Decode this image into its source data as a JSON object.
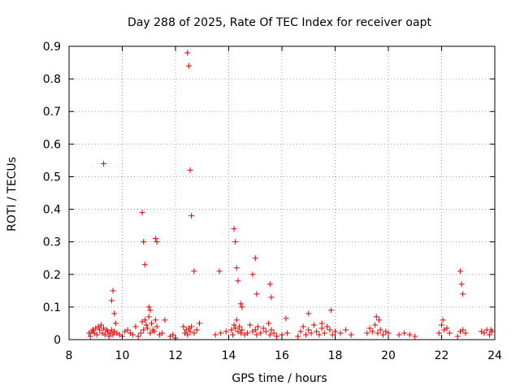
{
  "chart_data": {
    "type": "scatter",
    "title": "Day 288 of 2025, Rate Of TEC Index for receiver oapt",
    "xlabel": "GPS time / hours",
    "ylabel": "ROTI / TECUs",
    "xlim": [
      8,
      24
    ],
    "ylim": [
      0,
      0.9
    ],
    "xticks": [
      8,
      10,
      12,
      14,
      16,
      18,
      20,
      22,
      24
    ],
    "yticks": [
      0,
      0.1,
      0.2,
      0.3,
      0.4,
      0.5,
      0.6,
      0.7,
      0.8,
      0.9
    ],
    "grid": true,
    "marker": "+",
    "series": [
      {
        "name": "ROTI",
        "color": "#e00000",
        "x": [
          8.75,
          8.8,
          8.85,
          8.9,
          8.95,
          9.0,
          9.05,
          9.1,
          9.15,
          9.2,
          9.25,
          9.3,
          9.35,
          9.4,
          9.45,
          9.5,
          9.55,
          9.6,
          9.65,
          9.7,
          9.75,
          9.8,
          9.9,
          10.0,
          10.1,
          10.2,
          10.3,
          10.4,
          10.5,
          10.6,
          10.7,
          10.75,
          10.8,
          10.85,
          10.9,
          10.95,
          11.0,
          11.05,
          11.1,
          11.15,
          11.2,
          11.25,
          11.3,
          11.4,
          11.5,
          11.6,
          11.8,
          11.9,
          12.0,
          12.3,
          12.35,
          12.4,
          12.45,
          12.5,
          12.55,
          12.6,
          12.7,
          12.8,
          12.9,
          13.5,
          13.7,
          13.9,
          14.1,
          14.15,
          14.2,
          14.25,
          14.3,
          14.35,
          14.4,
          14.45,
          14.5,
          14.6,
          14.7,
          14.8,
          14.9,
          15.0,
          15.05,
          15.1,
          15.2,
          15.3,
          15.4,
          15.5,
          15.55,
          15.6,
          15.7,
          15.8,
          16.0,
          16.2,
          16.6,
          16.7,
          16.8,
          16.9,
          17.0,
          17.1,
          17.2,
          17.3,
          17.4,
          17.5,
          17.6,
          17.7,
          17.8,
          17.9,
          18.0,
          18.2,
          18.4,
          18.6,
          19.2,
          19.3,
          19.4,
          19.5,
          19.6,
          19.7,
          19.8,
          19.9,
          20.0,
          20.4,
          20.6,
          20.8,
          21.0,
          21.9,
          22.0,
          22.1,
          22.2,
          22.3,
          22.6,
          22.7,
          22.8,
          22.9,
          23.5,
          23.6,
          23.7,
          23.8,
          23.9,
          9.3,
          9.6,
          9.65,
          9.7,
          10.75,
          10.8,
          10.85,
          11.0,
          11.05,
          11.25,
          11.3,
          12.45,
          12.5,
          12.55,
          12.6,
          12.7,
          13.65,
          14.2,
          14.25,
          14.3,
          14.35,
          14.45,
          14.5,
          14.9,
          15.0,
          15.05,
          15.55,
          15.6,
          16.15,
          17.0,
          17.5,
          17.85,
          19.55,
          19.65,
          22.05,
          22.7,
          22.75,
          22.8,
          23.85
        ],
        "y": [
          0.02,
          0.01,
          0.025,
          0.03,
          0.02,
          0.035,
          0.015,
          0.04,
          0.03,
          0.045,
          0.02,
          0.035,
          0.015,
          0.03,
          0.025,
          0.01,
          0.02,
          0.03,
          0.015,
          0.025,
          0.05,
          0.02,
          0.015,
          0.01,
          0.025,
          0.03,
          0.02,
          0.015,
          0.04,
          0.01,
          0.02,
          0.055,
          0.03,
          0.06,
          0.045,
          0.035,
          0.07,
          0.02,
          0.05,
          0.03,
          0.025,
          0.06,
          0.04,
          0.015,
          0.02,
          0.06,
          0.01,
          0.015,
          0.005,
          0.04,
          0.02,
          0.03,
          0.015,
          0.035,
          0.025,
          0.04,
          0.02,
          0.03,
          0.05,
          0.015,
          0.02,
          0.025,
          0.03,
          0.015,
          0.045,
          0.035,
          0.06,
          0.025,
          0.04,
          0.02,
          0.03,
          0.015,
          0.02,
          0.045,
          0.025,
          0.03,
          0.015,
          0.04,
          0.02,
          0.035,
          0.025,
          0.05,
          0.015,
          0.03,
          0.02,
          0.01,
          0.015,
          0.02,
          0.01,
          0.025,
          0.04,
          0.015,
          0.03,
          0.02,
          0.045,
          0.025,
          0.015,
          0.035,
          0.02,
          0.04,
          0.03,
          0.015,
          0.025,
          0.02,
          0.03,
          0.015,
          0.02,
          0.035,
          0.025,
          0.045,
          0.02,
          0.03,
          0.015,
          0.025,
          0.02,
          0.015,
          0.02,
          0.015,
          0.01,
          0.02,
          0.045,
          0.03,
          0.035,
          0.02,
          0.01,
          0.025,
          0.03,
          0.02,
          0.025,
          0.02,
          0.03,
          0.015,
          0.025,
          0.54,
          0.12,
          0.15,
          0.08,
          0.39,
          0.3,
          0.23,
          0.1,
          0.09,
          0.31,
          0.3,
          0.88,
          0.84,
          0.52,
          0.38,
          0.21,
          0.21,
          0.34,
          0.3,
          0.22,
          0.18,
          0.11,
          0.1,
          0.2,
          0.25,
          0.14,
          0.17,
          0.13,
          0.065,
          0.08,
          0.05,
          0.09,
          0.07,
          0.06,
          0.06,
          0.21,
          0.17,
          0.14,
          0.03
        ]
      }
    ]
  }
}
